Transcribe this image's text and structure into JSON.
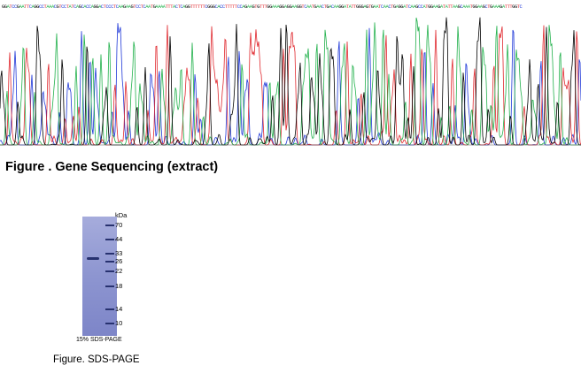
{
  "sequencing": {
    "bases": "GGATCCGAATTCAGGCCTAAACGTCCTATCAGCACCAGGACTCCCTCAAGAAGTCCTCAATGAAAATTTACTCAGGTTTTTTCGGGCACCTTTTTCCAGAAGTGTTTGGAAAGGAGGAAGGTCAATGAACTGACAAGGATATTGGGAGTGAATCAACTGAGGATCAAGCCATGGAAGATATTAAGCAAATGGAAGCTGAAAGATTTGGTC",
    "caption": "Figure . Gene Sequencing (extract)",
    "colors": {
      "A": "#22b14c",
      "C": "#1f38d8",
      "G": "#000000",
      "T": "#e0282e"
    }
  },
  "gel": {
    "unit_label": "kDa",
    "markers": [
      "70",
      "44",
      "33",
      "26",
      "22",
      "18",
      "14",
      "10"
    ],
    "lane_caption": "15% SDS-PAGE",
    "caption": "Figure. SDS-PAGE"
  }
}
